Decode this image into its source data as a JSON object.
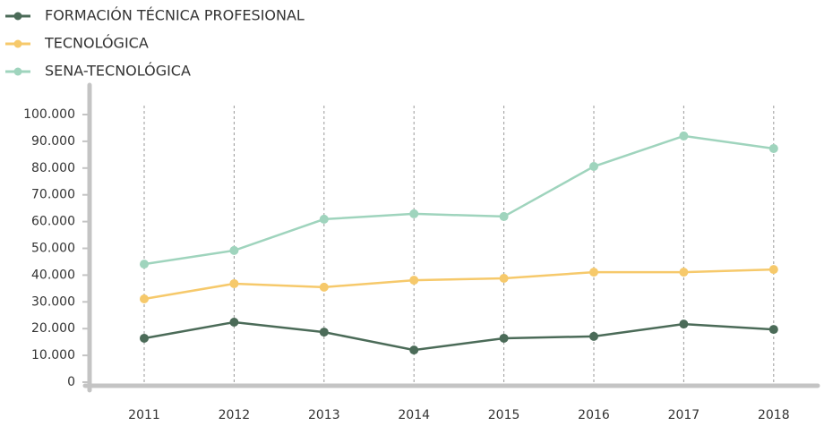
{
  "chart_data": {
    "type": "line",
    "categories": [
      "2011",
      "2012",
      "2013",
      "2014",
      "2015",
      "2016",
      "2017",
      "2018"
    ],
    "series": [
      {
        "name": "FORMACIÓN TÉCNICA PROFESIONAL",
        "color": "#4b6b58",
        "values": [
          16400,
          22400,
          18700,
          12000,
          16400,
          17100,
          21700,
          19700
        ]
      },
      {
        "name": "TECNOLÓGICA",
        "color": "#f6c96b",
        "values": [
          31100,
          36800,
          35500,
          38100,
          38800,
          41100,
          41100,
          42100
        ]
      },
      {
        "name": "SENA-TECNOLÓGICA",
        "color": "#9fd4bd",
        "values": [
          44100,
          49200,
          60900,
          62900,
          61900,
          80600,
          92000,
          87300
        ]
      }
    ],
    "ylim": [
      0,
      100000
    ],
    "yticks": [
      0,
      {
        "value": 10000,
        "label": "10.000"
      },
      {
        "value": 20000,
        "label": "20.000"
      },
      {
        "value": 30000,
        "label": "30.000"
      },
      {
        "value": 40000,
        "label": "40.000"
      },
      {
        "value": 50000,
        "label": "50.000"
      },
      {
        "value": 60000,
        "label": "60.000"
      },
      {
        "value": 70000,
        "label": "70.000"
      },
      {
        "value": 80000,
        "label": "80.000"
      },
      {
        "value": 90000,
        "label": "90.000"
      },
      {
        "value": 100000,
        "label": "100.000"
      }
    ],
    "grid": "x",
    "legend": "top-left"
  }
}
